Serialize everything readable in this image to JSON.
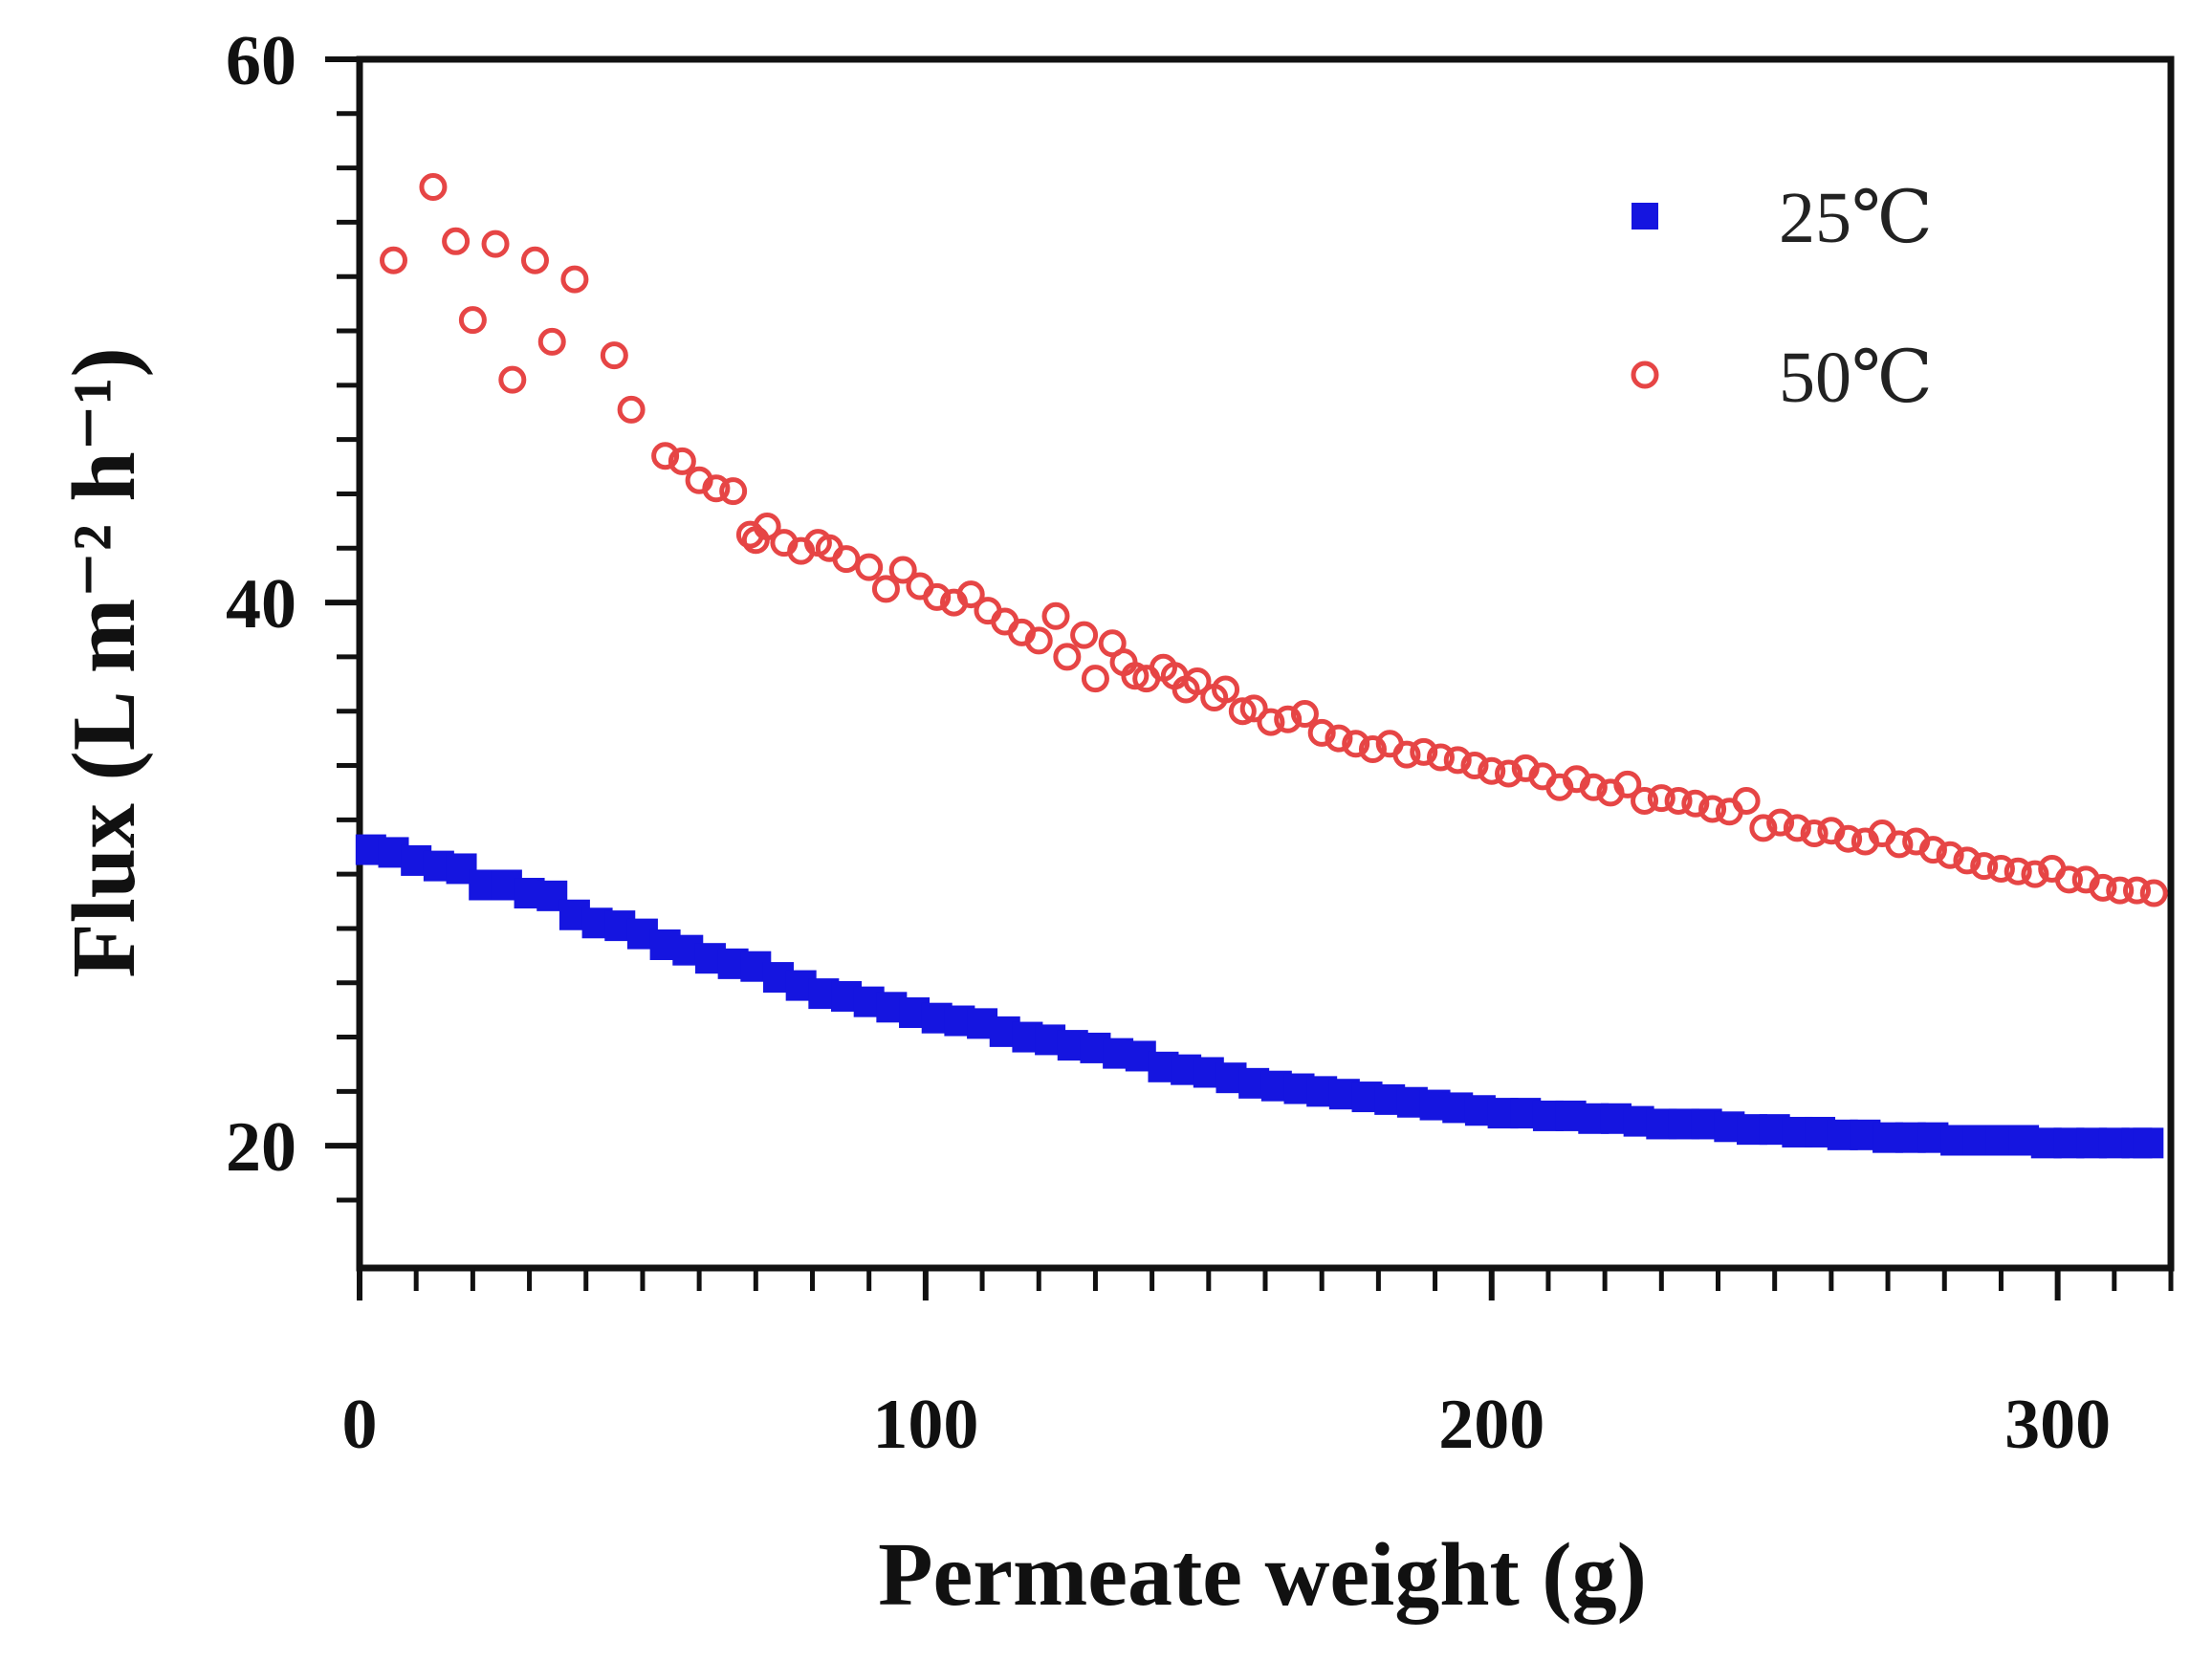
{
  "chart_data": {
    "type": "scatter",
    "xlabel": "Permeate weight (g)",
    "ylabel": "Flux (L m⁻² h⁻¹)",
    "xlim": [
      0,
      320
    ],
    "ylim": [
      15.5,
      60
    ],
    "x_ticks": [
      0,
      100,
      200,
      300
    ],
    "y_ticks": [
      20,
      40,
      60
    ],
    "legend_position": "top-right",
    "series": [
      {
        "name": "25℃",
        "marker": "filled-square",
        "color": "#1515e0",
        "x": [
          2,
          6,
          10,
          14,
          18,
          22,
          26,
          30,
          34,
          38,
          42,
          46,
          50,
          54,
          58,
          62,
          66,
          70,
          74,
          78,
          82,
          86,
          90,
          94,
          98,
          102,
          106,
          110,
          114,
          118,
          122,
          126,
          130,
          134,
          138,
          142,
          146,
          150,
          154,
          158,
          162,
          166,
          170,
          174,
          178,
          182,
          186,
          190,
          194,
          198,
          202,
          206,
          210,
          214,
          218,
          222,
          226,
          230,
          234,
          238,
          242,
          246,
          250,
          254,
          258,
          262,
          266,
          270,
          274,
          278,
          282,
          286,
          290,
          294,
          298,
          302,
          306,
          310,
          314,
          316
        ],
        "y": [
          30.9,
          30.8,
          30.5,
          30.3,
          30.2,
          29.6,
          29.6,
          29.3,
          29.2,
          28.5,
          28.2,
          28.1,
          27.8,
          27.4,
          27.2,
          26.9,
          26.7,
          26.6,
          26.2,
          25.9,
          25.6,
          25.5,
          25.3,
          25.1,
          24.9,
          24.7,
          24.6,
          24.5,
          24.2,
          24.0,
          23.9,
          23.7,
          23.6,
          23.4,
          23.3,
          22.9,
          22.8,
          22.7,
          22.5,
          22.3,
          22.2,
          22.1,
          22.0,
          21.9,
          21.8,
          21.7,
          21.6,
          21.5,
          21.4,
          21.3,
          21.2,
          21.2,
          21.1,
          21.1,
          21.0,
          21.0,
          20.9,
          20.8,
          20.8,
          20.8,
          20.7,
          20.6,
          20.6,
          20.5,
          20.5,
          20.4,
          20.4,
          20.3,
          20.3,
          20.3,
          20.2,
          20.2,
          20.2,
          20.2,
          20.1,
          20.1,
          20.1,
          20.1,
          20.1,
          20.1
        ]
      },
      {
        "name": "50℃",
        "marker": "open-circle",
        "color": "#e64545",
        "x": [
          6,
          13,
          17,
          20,
          24,
          27,
          31,
          34,
          38,
          45,
          48,
          54,
          57,
          60,
          63,
          66,
          69,
          70,
          72,
          75,
          78,
          81,
          83,
          86,
          90,
          93,
          96,
          99,
          102,
          105,
          108,
          111,
          114,
          117,
          120,
          123,
          125,
          128,
          130,
          133,
          135,
          137,
          139,
          142,
          144,
          146,
          148,
          151,
          153,
          156,
          158,
          161,
          164,
          167,
          170,
          173,
          176,
          179,
          182,
          185,
          188,
          191,
          194,
          197,
          200,
          203,
          206,
          209,
          212,
          215,
          218,
          221,
          224,
          227,
          230,
          233,
          236,
          239,
          242,
          245,
          248,
          251,
          254,
          257,
          260,
          263,
          266,
          269,
          272,
          275,
          278,
          281,
          284,
          287,
          290,
          293,
          296,
          299,
          302,
          305,
          308,
          311,
          314,
          317
        ],
        "y": [
          52.6,
          55.3,
          53.3,
          50.4,
          53.2,
          48.2,
          52.6,
          49.6,
          51.9,
          49.1,
          47.1,
          45.4,
          45.2,
          44.5,
          44.2,
          44.1,
          42.5,
          42.3,
          42.8,
          42.2,
          41.9,
          42.2,
          42.0,
          41.6,
          41.3,
          40.5,
          41.2,
          40.6,
          40.2,
          40.0,
          40.3,
          39.7,
          39.3,
          38.9,
          38.6,
          39.5,
          38.0,
          38.8,
          37.2,
          38.5,
          37.8,
          37.3,
          37.2,
          37.6,
          37.3,
          36.8,
          37.1,
          36.5,
          36.8,
          36.0,
          36.1,
          35.6,
          35.7,
          35.9,
          35.2,
          35.0,
          34.8,
          34.6,
          34.8,
          34.4,
          34.5,
          34.3,
          34.2,
          34.0,
          33.8,
          33.7,
          33.9,
          33.6,
          33.2,
          33.5,
          33.2,
          33.0,
          33.3,
          32.7,
          32.8,
          32.7,
          32.6,
          32.4,
          32.3,
          32.7,
          31.7,
          31.9,
          31.7,
          31.5,
          31.6,
          31.3,
          31.2,
          31.5,
          31.1,
          31.2,
          30.9,
          30.7,
          30.5,
          30.3,
          30.2,
          30.1,
          30.0,
          30.2,
          29.8,
          29.8,
          29.5,
          29.4,
          29.4,
          29.3
        ]
      }
    ]
  }
}
